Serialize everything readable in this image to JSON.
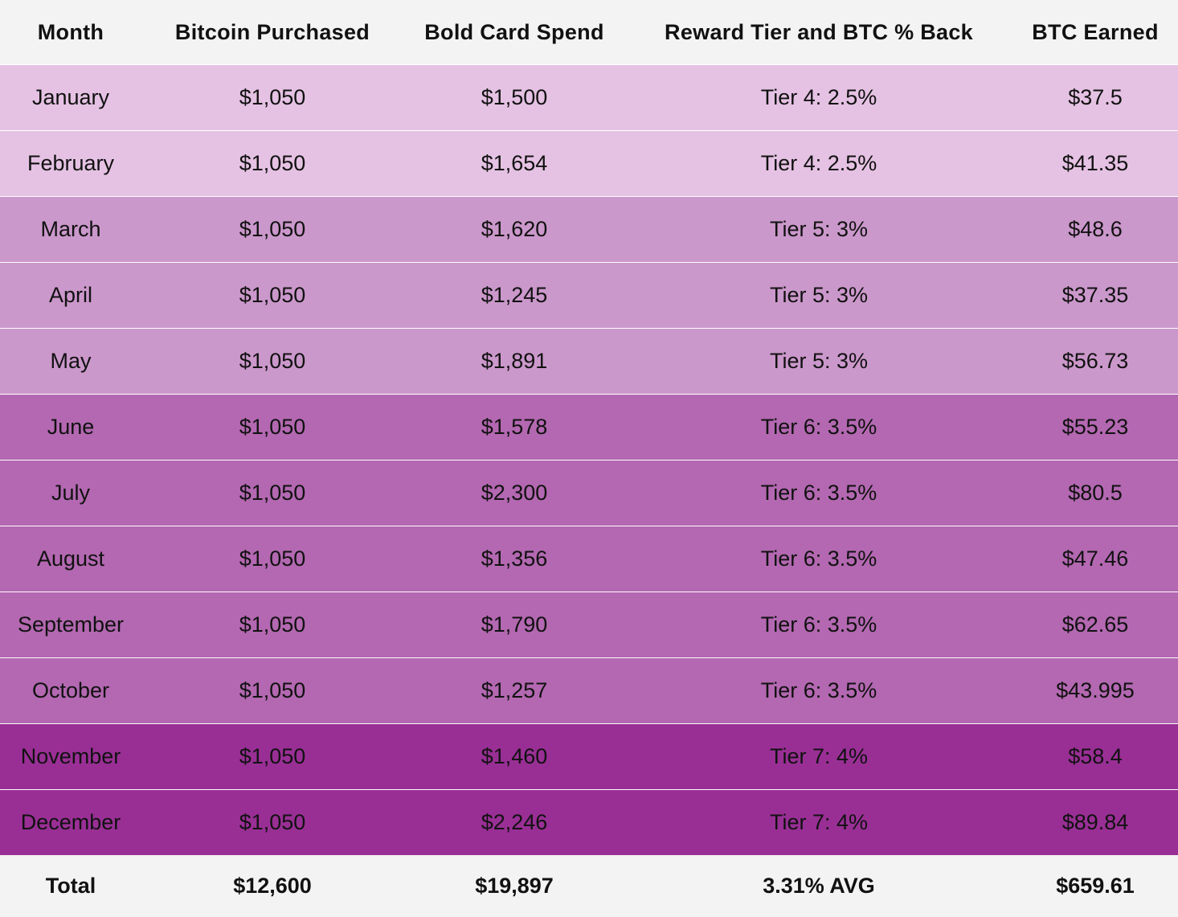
{
  "headers": {
    "month": "Month",
    "bitcoin_purchased": "Bitcoin Purchased",
    "bold_card_spend": "Bold Card Spend",
    "reward_tier": "Reward Tier and BTC % Back",
    "btc_earned": "BTC Earned"
  },
  "rows": [
    {
      "month": "January",
      "bitcoin_purchased": "$1,050",
      "bold_card_spend": "$1,500",
      "reward_tier": "Tier 4: 2.5%",
      "btc_earned": "$37.5",
      "tier": "tier4"
    },
    {
      "month": "February",
      "bitcoin_purchased": "$1,050",
      "bold_card_spend": "$1,654",
      "reward_tier": "Tier 4: 2.5%",
      "btc_earned": "$41.35",
      "tier": "tier4"
    },
    {
      "month": "March",
      "bitcoin_purchased": "$1,050",
      "bold_card_spend": "$1,620",
      "reward_tier": "Tier 5: 3%",
      "btc_earned": "$48.6",
      "tier": "tier5"
    },
    {
      "month": "April",
      "bitcoin_purchased": "$1,050",
      "bold_card_spend": "$1,245",
      "reward_tier": "Tier 5: 3%",
      "btc_earned": "$37.35",
      "tier": "tier5"
    },
    {
      "month": "May",
      "bitcoin_purchased": "$1,050",
      "bold_card_spend": "$1,891",
      "reward_tier": "Tier 5: 3%",
      "btc_earned": "$56.73",
      "tier": "tier5"
    },
    {
      "month": "June",
      "bitcoin_purchased": "$1,050",
      "bold_card_spend": "$1,578",
      "reward_tier": "Tier 6: 3.5%",
      "btc_earned": "$55.23",
      "tier": "tier6"
    },
    {
      "month": "July",
      "bitcoin_purchased": "$1,050",
      "bold_card_spend": "$2,300",
      "reward_tier": "Tier 6: 3.5%",
      "btc_earned": "$80.5",
      "tier": "tier6"
    },
    {
      "month": "August",
      "bitcoin_purchased": "$1,050",
      "bold_card_spend": "$1,356",
      "reward_tier": "Tier 6: 3.5%",
      "btc_earned": "$47.46",
      "tier": "tier6"
    },
    {
      "month": "September",
      "bitcoin_purchased": "$1,050",
      "bold_card_spend": "$1,790",
      "reward_tier": "Tier 6: 3.5%",
      "btc_earned": "$62.65",
      "tier": "tier6"
    },
    {
      "month": "October",
      "bitcoin_purchased": "$1,050",
      "bold_card_spend": "$1,257",
      "reward_tier": "Tier 6: 3.5%",
      "btc_earned": "$43.995",
      "tier": "tier6"
    },
    {
      "month": "November",
      "bitcoin_purchased": "$1,050",
      "bold_card_spend": "$1,460",
      "reward_tier": "Tier 7: 4%",
      "btc_earned": "$58.4",
      "tier": "tier7"
    },
    {
      "month": "December",
      "bitcoin_purchased": "$1,050",
      "bold_card_spend": "$2,246",
      "reward_tier": "Tier 7: 4%",
      "btc_earned": "$89.84",
      "tier": "tier7"
    }
  ],
  "totals": {
    "label": "Total",
    "bitcoin_purchased": "$12,600",
    "bold_card_spend": "$19,897",
    "reward_tier": "3.31% AVG",
    "btc_earned": "$659.61"
  },
  "colors": {
    "header_bg": "#f3f3f3",
    "tier4": "#e5c2e3",
    "tier5": "#cb98cb",
    "tier6": "#b368b1",
    "tier7": "#992f95",
    "row_divider": "#ffffff"
  }
}
